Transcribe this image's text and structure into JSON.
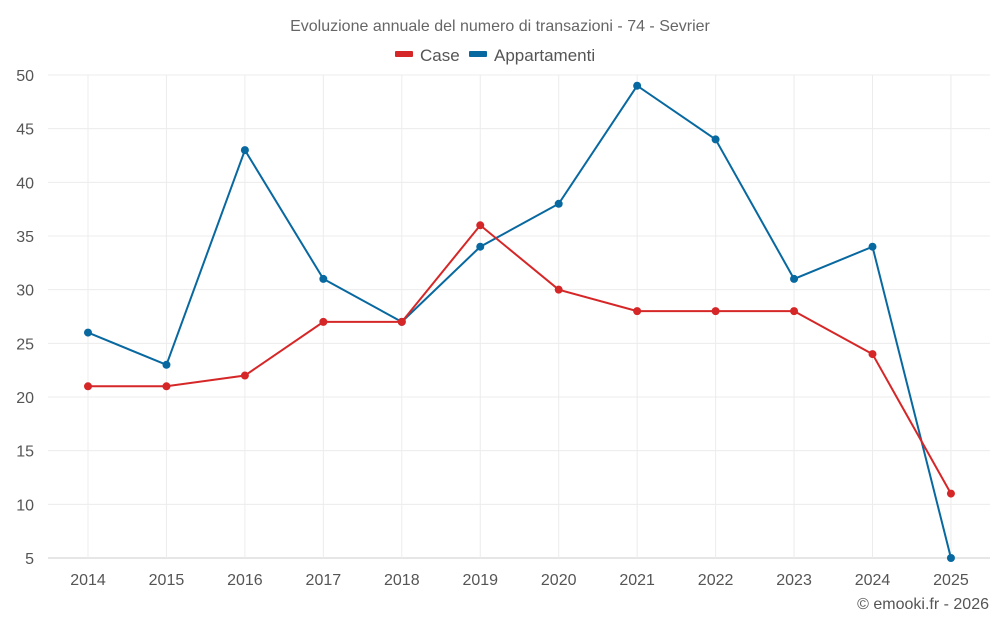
{
  "chart_data": {
    "type": "line",
    "title": "Evoluzione annuale del numero di transazioni - 74 - Sevrier",
    "xlabel": "",
    "ylabel": "",
    "categories": [
      "2014",
      "2015",
      "2016",
      "2017",
      "2018",
      "2019",
      "2020",
      "2021",
      "2022",
      "2023",
      "2024",
      "2025"
    ],
    "y_ticks": [
      5,
      10,
      15,
      20,
      25,
      30,
      35,
      40,
      45,
      50
    ],
    "ylim": [
      5,
      50
    ],
    "grid": true,
    "legend_position": "top-center",
    "series": [
      {
        "name": "Case",
        "color": "#d62728",
        "values": [
          21,
          21,
          22,
          27,
          27,
          36,
          30,
          28,
          28,
          28,
          24,
          11
        ]
      },
      {
        "name": "Appartamenti",
        "color": "#0868a0",
        "values": [
          26,
          23,
          43,
          31,
          27,
          34,
          38,
          49,
          44,
          31,
          34,
          5
        ]
      }
    ],
    "credit": "© emooki.fr - 2026"
  }
}
